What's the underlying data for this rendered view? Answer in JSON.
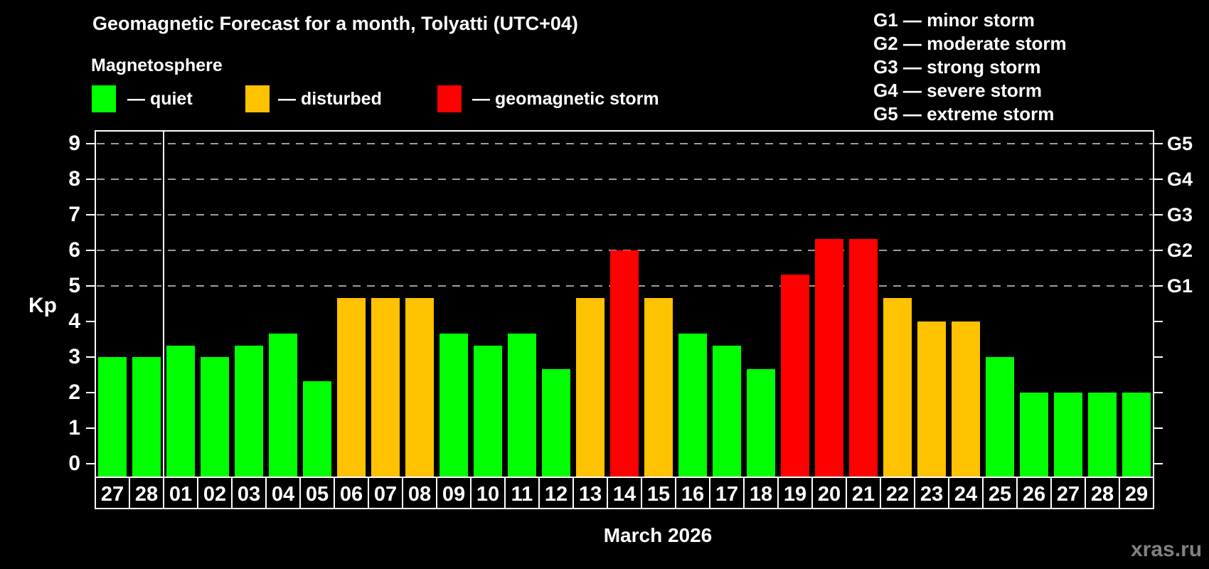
{
  "title": "Geomagnetic Forecast for a month, Tolyatti (UTC+04)",
  "subtitle": "Magnetosphere",
  "legend": {
    "items": [
      {
        "key": "quiet",
        "label": "— quiet"
      },
      {
        "key": "disturbed",
        "label": "— disturbed"
      },
      {
        "key": "storm",
        "label": "— geomagnetic storm"
      }
    ]
  },
  "g_scale_legend": [
    "G1 — minor storm",
    "G2 — moderate storm",
    "G3 — strong storm",
    "G4 — severe storm",
    "G5 — extreme storm"
  ],
  "watermark": "xras.ru",
  "chart_data": {
    "type": "bar",
    "title": "Geomagnetic Forecast for a month, Tolyatti (UTC+04)",
    "xlabel": "March 2026",
    "ylabel": "Kp",
    "ylim": [
      0,
      9.4
    ],
    "yticks": [
      0,
      1,
      2,
      3,
      4,
      5,
      6,
      7,
      8,
      9
    ],
    "grid_levels": [
      5,
      6,
      7,
      8,
      9
    ],
    "grid_style": "dashed",
    "legend_position": "top",
    "right_axis_labels": [
      {
        "kp": 5,
        "label": "G1"
      },
      {
        "kp": 6,
        "label": "G2"
      },
      {
        "kp": 7,
        "label": "G3"
      },
      {
        "kp": 8,
        "label": "G4"
      },
      {
        "kp": 9,
        "label": "G5"
      }
    ],
    "month_boundary_after_index": 1,
    "categories": [
      "27",
      "28",
      "01",
      "02",
      "03",
      "04",
      "05",
      "06",
      "07",
      "08",
      "09",
      "10",
      "11",
      "12",
      "13",
      "14",
      "15",
      "16",
      "17",
      "18",
      "19",
      "20",
      "21",
      "22",
      "23",
      "24",
      "25",
      "26",
      "27",
      "28",
      "29"
    ],
    "values": [
      3.0,
      3.0,
      3.33,
      3.0,
      3.33,
      3.67,
      2.33,
      4.67,
      4.67,
      4.67,
      3.67,
      3.33,
      3.67,
      2.67,
      4.67,
      6.0,
      4.67,
      3.67,
      3.33,
      2.67,
      5.33,
      6.33,
      6.33,
      4.67,
      4.0,
      4.0,
      3.0,
      2.0,
      2.0,
      2.0,
      2.0
    ],
    "status": [
      "quiet",
      "quiet",
      "quiet",
      "quiet",
      "quiet",
      "quiet",
      "quiet",
      "disturbed",
      "disturbed",
      "disturbed",
      "quiet",
      "quiet",
      "quiet",
      "quiet",
      "disturbed",
      "storm",
      "disturbed",
      "quiet",
      "quiet",
      "quiet",
      "storm",
      "storm",
      "storm",
      "disturbed",
      "disturbed",
      "disturbed",
      "quiet",
      "quiet",
      "quiet",
      "quiet",
      "quiet"
    ],
    "colors": {
      "quiet": "#00ff00",
      "disturbed": "#ffc200",
      "storm": "#ff0000",
      "grid": "#9c9c9c",
      "axis": "#ffffff",
      "background": "#000000"
    }
  }
}
